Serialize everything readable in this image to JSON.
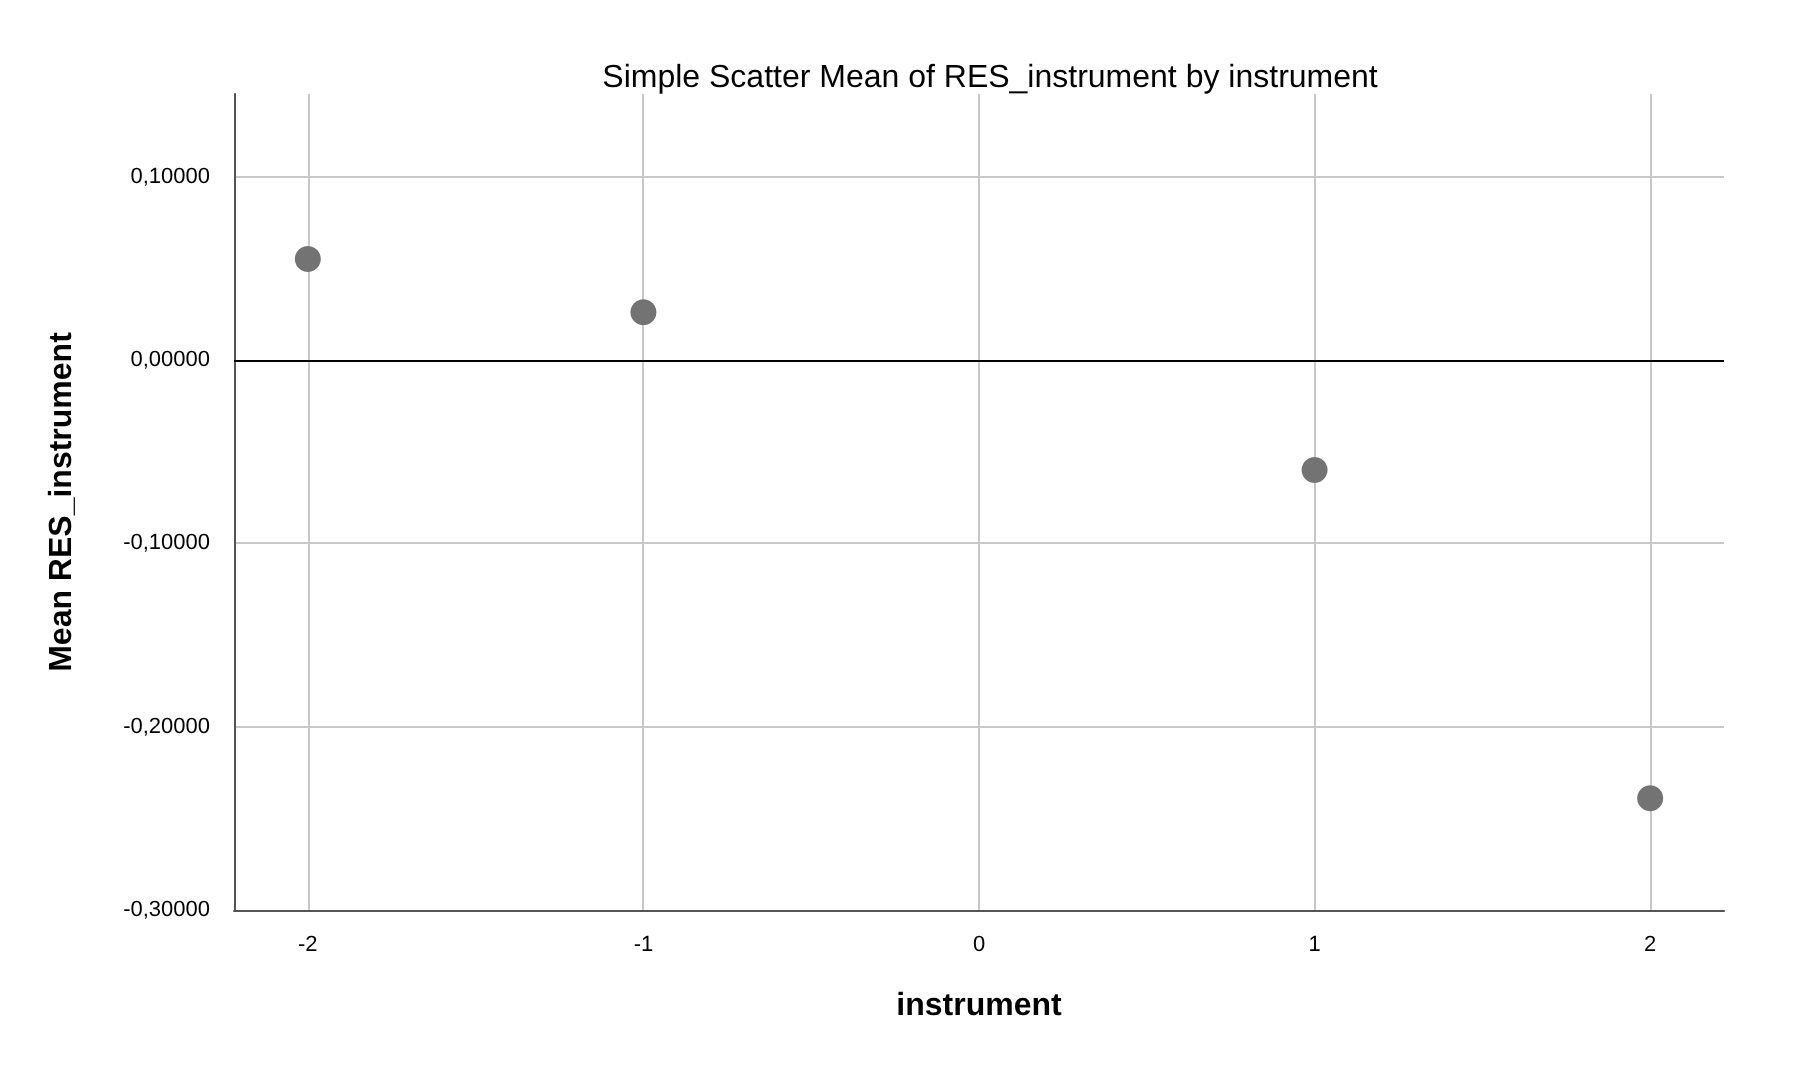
{
  "chart_data": {
    "type": "scatter",
    "title": "Simple Scatter Mean of RES_instrument by instrument",
    "xlabel": "instrument",
    "ylabel": "Mean RES_instrument",
    "x": [
      -2,
      -1,
      1,
      2
    ],
    "series": [
      {
        "color": "#737373",
        "values": [
          0.055,
          0.026,
          -0.06,
          -0.239
        ]
      }
    ],
    "xlim": [
      -2.22,
      2.22
    ],
    "xticks": [
      -2,
      -1,
      0,
      1,
      2
    ],
    "ylim": [
      -0.3,
      0.145
    ],
    "yticks": [
      {
        "value": -0.3,
        "label": "-0,30000"
      },
      {
        "value": -0.2,
        "label": "-0,20000"
      },
      {
        "value": -0.1,
        "label": "-0,10000"
      },
      {
        "value": 0,
        "label": "0,00000"
      },
      {
        "value": 0.1,
        "label": "0,10000"
      }
    ],
    "ref_lines": [
      {
        "axis": "y",
        "value": 0,
        "color": "#000000",
        "line_style": "solid"
      }
    ],
    "grid": true,
    "marker": "circle"
  }
}
